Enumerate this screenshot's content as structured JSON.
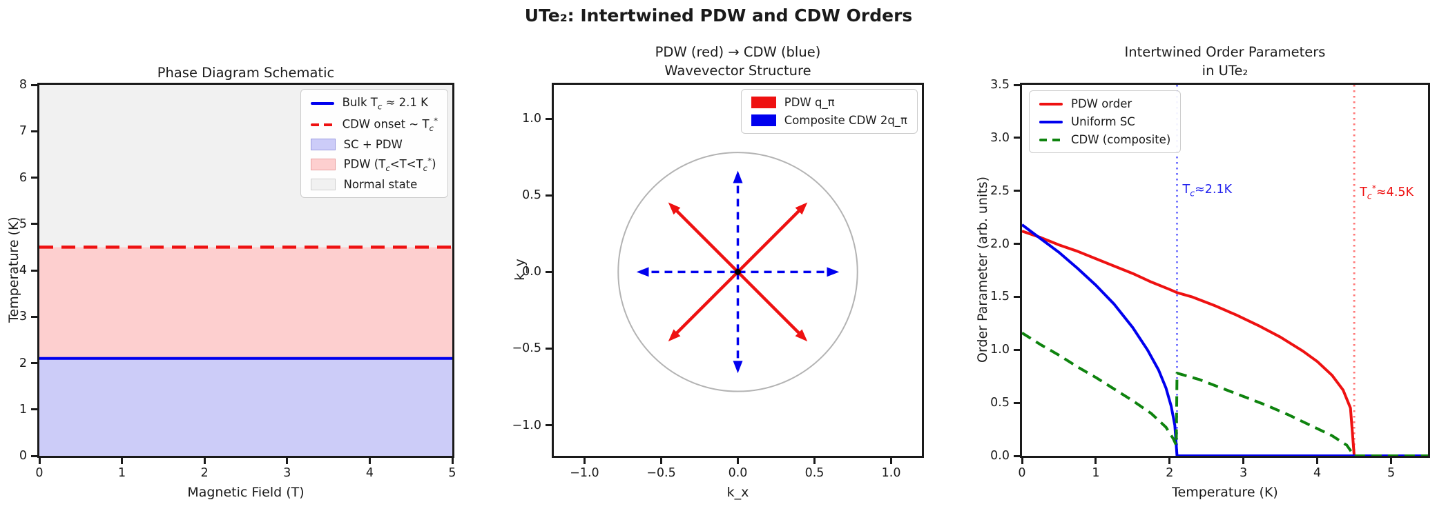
{
  "figure": {
    "title": "UTe₂: Intertwined PDW and CDW Orders"
  },
  "chart_data": [
    {
      "id": "phase-diagram",
      "type": "area",
      "title": "Phase Diagram Schematic",
      "xlabel": "Magnetic Field (T)",
      "ylabel": "Temperature (K)",
      "xlim": [
        0,
        5
      ],
      "ylim": [
        0,
        8
      ],
      "xticks": {
        "values": [
          0,
          1,
          2,
          3,
          4,
          5
        ],
        "labels": [
          "0",
          "1",
          "2",
          "3",
          "4",
          "5"
        ]
      },
      "yticks": {
        "values": [
          0,
          1,
          2,
          3,
          4,
          5,
          6,
          7,
          8
        ],
        "labels": [
          "0",
          "1",
          "2",
          "3",
          "4",
          "5",
          "6",
          "7",
          "8"
        ]
      },
      "regions": [
        {
          "label": "SC + PDW",
          "from": 0,
          "to": 2.1,
          "color": "#ccccf8"
        },
        {
          "label": "PDW (Tc<T<Tc*)",
          "from": 2.1,
          "to": 4.5,
          "color": "#fdcfcf"
        },
        {
          "label": "Normal state",
          "from": 4.5,
          "to": 8,
          "color": "#f1f1f1"
        }
      ],
      "hlines": [
        {
          "label": "Bulk Tc ≈ 2.1 K",
          "y": 2.1,
          "color": "#0000ee",
          "dash": null,
          "width": 4
        },
        {
          "label": "CDW onset ~ Tc*",
          "y": 4.5,
          "color": "#ee1111",
          "dash": "20 12",
          "width": 4.5
        }
      ],
      "legend": [
        {
          "type": "line",
          "color": "#0000ee",
          "dash": null,
          "label": "Bulk Tc ≈ 2.1 K",
          "label_html": "Bulk T<sub>c</sub> ≈ 2.1 K"
        },
        {
          "type": "line",
          "color": "#ee1111",
          "dash": "12px",
          "label": "CDW onset ~ Tc*",
          "label_html": "CDW onset ~ T<sub>c</sub><sup>*</sup>"
        },
        {
          "type": "patch",
          "color": "#ccccf8",
          "edge": "#9a9ae0",
          "label": "SC + PDW",
          "label_html": "SC + PDW"
        },
        {
          "type": "patch",
          "color": "#fdcfcf",
          "edge": "#e8a0a0",
          "label": "PDW (Tc<T<Tc*)",
          "label_html": "PDW (T<sub>c</sub>&lt;T&lt;T<sub>c</sub><sup>*</sup>)"
        },
        {
          "type": "patch",
          "color": "#f1f1f1",
          "edge": "#cfcfcf",
          "label": "Normal state",
          "label_html": "Normal state"
        }
      ]
    },
    {
      "id": "wavevector-structure",
      "type": "quiver",
      "title_line1": "PDW (red) → CDW (blue)",
      "title_line2": "Wavevector Structure",
      "xlabel": "k_x",
      "ylabel": "k_y",
      "xlim": [
        -1.2,
        1.2
      ],
      "ylim": [
        -1.2,
        1.221
      ],
      "xticks": {
        "values": [
          -1.0,
          -0.5,
          0.0,
          0.5,
          1.0
        ],
        "labels": [
          "−1.0",
          "−0.5",
          "0.0",
          "0.5",
          "1.0"
        ]
      },
      "yticks": {
        "values": [
          -1.0,
          -0.5,
          0.0,
          0.5,
          1.0
        ],
        "labels": [
          "−1.0",
          "−0.5",
          "0.0",
          "0.5",
          "1.0"
        ]
      },
      "circle_radius": 0.78,
      "circle_color": "#b3b3b3",
      "origin_dot_color": "#000000",
      "red_arrows": [
        [
          0.46,
          0.46
        ],
        [
          -0.46,
          0.46
        ],
        [
          -0.46,
          -0.46
        ],
        [
          0.46,
          -0.46
        ]
      ],
      "blue_arrows": [
        [
          0.67,
          0
        ],
        [
          -0.67,
          0
        ],
        [
          0,
          0.67
        ],
        [
          0,
          -0.67
        ]
      ],
      "red_color": "#ee1111",
      "blue_color": "#0000ee",
      "legend": [
        {
          "type": "patch",
          "color": "#ee1111",
          "edge": "#ee1111",
          "label": "PDW q_π",
          "label_html": "PDW q_π"
        },
        {
          "type": "patch",
          "color": "#0000ee",
          "edge": "#0000ee",
          "label": "Composite CDW 2q_π",
          "label_html": "Composite CDW 2q_π"
        }
      ]
    },
    {
      "id": "order-parameters",
      "type": "line",
      "title_line1": "Intertwined Order Parameters",
      "title_line2": "in UTe₂",
      "xlabel": "Temperature (K)",
      "ylabel": "Order Parameter (arb. units)",
      "xlim": [
        0,
        5.5
      ],
      "ylim": [
        0,
        3.5
      ],
      "xticks": {
        "values": [
          0,
          1,
          2,
          3,
          4,
          5
        ],
        "labels": [
          "0",
          "1",
          "2",
          "3",
          "4",
          "5"
        ]
      },
      "yticks": {
        "values": [
          0.0,
          0.5,
          1.0,
          1.5,
          2.0,
          2.5,
          3.0,
          3.5
        ],
        "labels": [
          "0.0",
          "0.5",
          "1.0",
          "1.5",
          "2.0",
          "2.5",
          "3.0",
          "3.5"
        ]
      },
      "series": [
        {
          "name": "PDW order",
          "color": "#ee1111",
          "dash": null,
          "width": 4,
          "points": [
            [
              0,
              2.12
            ],
            [
              0.25,
              2.06
            ],
            [
              0.5,
              1.99
            ],
            [
              0.75,
              1.93
            ],
            [
              1.0,
              1.86
            ],
            [
              1.25,
              1.79
            ],
            [
              1.5,
              1.72
            ],
            [
              1.75,
              1.64
            ],
            [
              2.0,
              1.57
            ],
            [
              2.1,
              1.54
            ],
            [
              2.3,
              1.5
            ],
            [
              2.6,
              1.42
            ],
            [
              2.9,
              1.33
            ],
            [
              3.2,
              1.23
            ],
            [
              3.5,
              1.12
            ],
            [
              3.8,
              0.99
            ],
            [
              4.0,
              0.89
            ],
            [
              4.2,
              0.76
            ],
            [
              4.35,
              0.62
            ],
            [
              4.45,
              0.45
            ],
            [
              4.5,
              0.0
            ],
            [
              5.5,
              0.0
            ]
          ]
        },
        {
          "name": "Uniform SC",
          "color": "#0000ee",
          "dash": null,
          "width": 4,
          "points": [
            [
              0,
              2.18
            ],
            [
              0.25,
              2.05
            ],
            [
              0.5,
              1.92
            ],
            [
              0.75,
              1.77
            ],
            [
              1.0,
              1.61
            ],
            [
              1.25,
              1.43
            ],
            [
              1.5,
              1.21
            ],
            [
              1.7,
              1.0
            ],
            [
              1.85,
              0.81
            ],
            [
              1.95,
              0.64
            ],
            [
              2.02,
              0.47
            ],
            [
              2.07,
              0.29
            ],
            [
              2.1,
              0.0
            ],
            [
              5.5,
              0.0
            ]
          ]
        },
        {
          "name": "CDW (composite)",
          "color": "#0e830e",
          "dash": "15 9",
          "width": 4,
          "points": [
            [
              0,
              1.16
            ],
            [
              0.25,
              1.05
            ],
            [
              0.5,
              0.95
            ],
            [
              0.75,
              0.84
            ],
            [
              1.0,
              0.74
            ],
            [
              1.25,
              0.63
            ],
            [
              1.5,
              0.52
            ],
            [
              1.75,
              0.4
            ],
            [
              1.95,
              0.27
            ],
            [
              2.05,
              0.16
            ],
            [
              2.09,
              0.1
            ],
            [
              2.1,
              0.78
            ],
            [
              2.4,
              0.72
            ],
            [
              2.7,
              0.64
            ],
            [
              3.0,
              0.56
            ],
            [
              3.3,
              0.48
            ],
            [
              3.6,
              0.39
            ],
            [
              3.9,
              0.29
            ],
            [
              4.2,
              0.19
            ],
            [
              4.4,
              0.1
            ],
            [
              4.5,
              0.0
            ],
            [
              5.5,
              0.0
            ]
          ]
        }
      ],
      "vlines": [
        {
          "x": 2.1,
          "line_color": "rgba(51,51,255,0.65)",
          "label": "Tc≈2.1K",
          "label_html": "T<sub>c</sub>≈2.1K",
          "label_color": "#2222ee",
          "label_y": 2.5
        },
        {
          "x": 4.5,
          "line_color": "rgba(255,51,51,0.65)",
          "label": "Tc*≈4.5K",
          "label_html": "T<sub>c</sub><sup>*</sup>≈4.5K",
          "label_color": "#ee1111",
          "label_y": 2.5
        }
      ],
      "legend": [
        {
          "type": "line",
          "color": "#ee1111",
          "dash": null,
          "label": "PDW order",
          "label_html": "PDW order"
        },
        {
          "type": "line",
          "color": "#0000ee",
          "dash": null,
          "label": "Uniform SC",
          "label_html": "Uniform SC"
        },
        {
          "type": "line",
          "color": "#0e830e",
          "dash": "11px",
          "label": "CDW (composite)",
          "label_html": "CDW (composite)"
        }
      ]
    }
  ]
}
